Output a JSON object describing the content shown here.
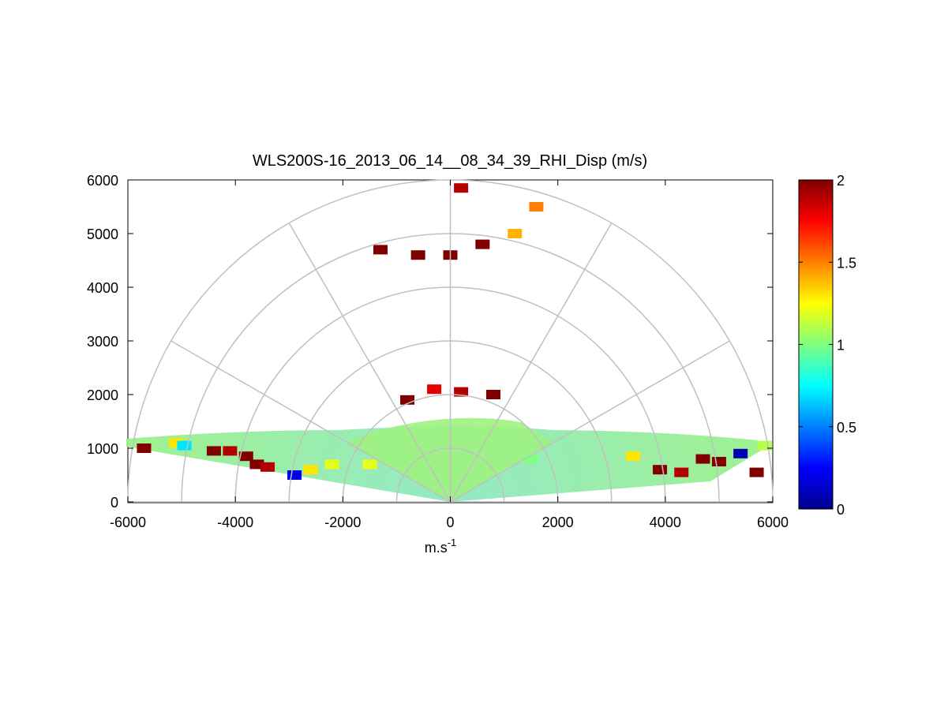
{
  "chart_data": {
    "type": "heatmap",
    "projection": "polar-half (RHI)",
    "title": "WLS200S-16_2013_06_14__08_34_39_RHI_Disp (m/s)",
    "xlabel": "m.s",
    "xlabel_superscript": "-1",
    "ylabel": "",
    "xlim": [
      -6000,
      6000
    ],
    "ylim": [
      0,
      6000
    ],
    "x_ticks": [
      "-6000",
      "-4000",
      "-2000",
      "0",
      "2000",
      "4000",
      "6000"
    ],
    "y_ticks": [
      "0",
      "1000",
      "2000",
      "3000",
      "4000",
      "5000",
      "6000"
    ],
    "polar_grid": {
      "range_rings": [
        1000,
        2000,
        3000,
        4000,
        5000,
        6000
      ],
      "spoke_angles_deg": [
        0,
        30,
        60,
        90,
        120,
        150,
        180
      ]
    },
    "colorbar": {
      "colormap": "jet",
      "range": [
        0,
        2
      ],
      "ticks": [
        "0",
        "0.5",
        "1",
        "1.5",
        "2"
      ]
    },
    "grid": true,
    "approximate_cells": [
      {
        "x": -5700,
        "y": 1000,
        "v": 2.0
      },
      {
        "x": -5100,
        "y": 1100,
        "v": 1.3
      },
      {
        "x": -4950,
        "y": 1050,
        "v": 0.7
      },
      {
        "x": -4400,
        "y": 950,
        "v": 2.0
      },
      {
        "x": -4100,
        "y": 950,
        "v": 1.9
      },
      {
        "x": -3800,
        "y": 850,
        "v": 2.0
      },
      {
        "x": -3600,
        "y": 700,
        "v": 2.0
      },
      {
        "x": -3400,
        "y": 650,
        "v": 1.9
      },
      {
        "x": -2900,
        "y": 500,
        "v": 0.2
      },
      {
        "x": -2600,
        "y": 600,
        "v": 1.3
      },
      {
        "x": -2200,
        "y": 700,
        "v": 1.2
      },
      {
        "x": -1500,
        "y": 700,
        "v": 1.2
      },
      {
        "x": 1500,
        "y": 800,
        "v": 1.0
      },
      {
        "x": 3400,
        "y": 850,
        "v": 1.3
      },
      {
        "x": 3900,
        "y": 600,
        "v": 2.0
      },
      {
        "x": 4300,
        "y": 550,
        "v": 1.9
      },
      {
        "x": 4700,
        "y": 800,
        "v": 2.0
      },
      {
        "x": 5000,
        "y": 750,
        "v": 2.0
      },
      {
        "x": 5400,
        "y": 900,
        "v": 0.1
      },
      {
        "x": 5700,
        "y": 550,
        "v": 2.0
      },
      {
        "x": 5850,
        "y": 1050,
        "v": 1.1
      },
      {
        "x": -800,
        "y": 1900,
        "v": 2.0
      },
      {
        "x": -300,
        "y": 2100,
        "v": 1.8
      },
      {
        "x": 200,
        "y": 2050,
        "v": 1.9
      },
      {
        "x": 800,
        "y": 2000,
        "v": 2.0
      },
      {
        "x": -1300,
        "y": 4700,
        "v": 2.0
      },
      {
        "x": -600,
        "y": 4600,
        "v": 2.0
      },
      {
        "x": 0,
        "y": 4600,
        "v": 2.0
      },
      {
        "x": 600,
        "y": 4800,
        "v": 2.0
      },
      {
        "x": 1200,
        "y": 5000,
        "v": 1.4
      },
      {
        "x": 1600,
        "y": 5500,
        "v": 1.5
      },
      {
        "x": 200,
        "y": 5850,
        "v": 1.9
      }
    ]
  }
}
